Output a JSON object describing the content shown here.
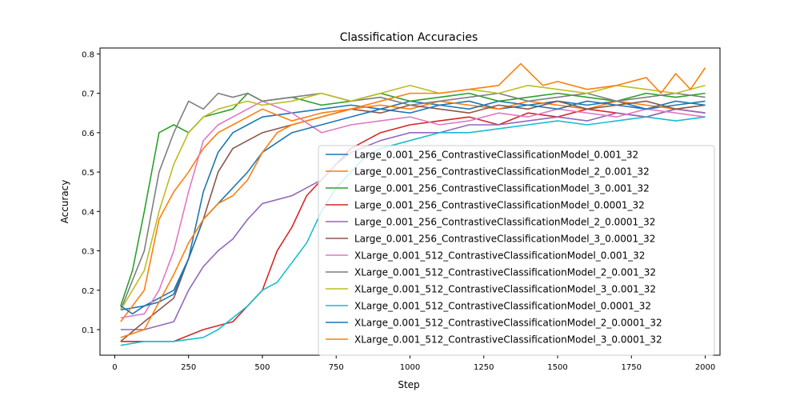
{
  "chart_data": {
    "type": "line",
    "title": "Classification Accuracies",
    "xlabel": "Step",
    "ylabel": "Accuracy",
    "xlim": [
      -50,
      2050
    ],
    "ylim": [
      0.035,
      0.815
    ],
    "xticks": [
      0,
      250,
      500,
      750,
      1000,
      1250,
      1500,
      1750,
      2000
    ],
    "yticks": [
      0.1,
      0.2,
      0.3,
      0.4,
      0.5,
      0.6,
      0.7,
      0.8
    ],
    "xtick_labels": [
      "0",
      "250",
      "500",
      "750",
      "1000",
      "1250",
      "1500",
      "1750",
      "2000"
    ],
    "ytick_labels": [
      "0.1",
      "0.2",
      "0.3",
      "0.4",
      "0.5",
      "0.6",
      "0.7",
      "0.8"
    ],
    "grid": false,
    "legend_position": "lower-right",
    "series": [
      {
        "name": "Large_0.001_256_ContrastiveClassificationModel_0.001_32",
        "color": "#1f77b4",
        "x": [
          20,
          100,
          200,
          250,
          300,
          350,
          400,
          450,
          500,
          600,
          700,
          800,
          900,
          1000,
          1100,
          1200,
          1300,
          1400,
          1500,
          1600,
          1700,
          1800,
          1900,
          2000
        ],
        "y": [
          0.15,
          0.16,
          0.2,
          0.28,
          0.45,
          0.55,
          0.6,
          0.62,
          0.64,
          0.65,
          0.66,
          0.67,
          0.66,
          0.68,
          0.67,
          0.68,
          0.66,
          0.67,
          0.68,
          0.67,
          0.68,
          0.66,
          0.67,
          0.68
        ]
      },
      {
        "name": "Large_0.001_256_ContrastiveClassificationModel_2_0.001_32",
        "color": "#ff7f0e",
        "x": [
          20,
          100,
          150,
          200,
          250,
          300,
          350,
          400,
          450,
          500,
          600,
          700,
          800,
          900,
          1000,
          1100,
          1200,
          1300,
          1400,
          1500,
          1600,
          1700,
          1800,
          1900,
          2000
        ],
        "y": [
          0.12,
          0.2,
          0.38,
          0.45,
          0.5,
          0.56,
          0.6,
          0.62,
          0.64,
          0.66,
          0.63,
          0.65,
          0.66,
          0.67,
          0.66,
          0.68,
          0.67,
          0.66,
          0.68,
          0.67,
          0.66,
          0.68,
          0.67,
          0.66,
          0.67
        ]
      },
      {
        "name": "Large_0.001_256_ContrastiveClassificationModel_3_0.001_32",
        "color": "#2ca02c",
        "x": [
          20,
          60,
          100,
          150,
          200,
          250,
          300,
          350,
          400,
          450,
          500,
          600,
          700,
          800,
          900,
          1000,
          1100,
          1200,
          1300,
          1400,
          1500,
          1600,
          1700,
          1800,
          1900,
          2000
        ],
        "y": [
          0.16,
          0.25,
          0.4,
          0.6,
          0.62,
          0.6,
          0.64,
          0.65,
          0.66,
          0.7,
          0.68,
          0.69,
          0.67,
          0.68,
          0.7,
          0.68,
          0.69,
          0.7,
          0.68,
          0.69,
          0.7,
          0.69,
          0.68,
          0.7,
          0.69,
          0.7
        ]
      },
      {
        "name": "Large_0.001_256_ContrastiveClassificationModel_0.0001_32",
        "color": "#d62728",
        "x": [
          20,
          100,
          200,
          300,
          400,
          450,
          500,
          550,
          600,
          650,
          700,
          750,
          800,
          900,
          1000,
          1100,
          1200,
          1300,
          1400,
          1500,
          1600,
          1700,
          1800,
          1900,
          2000
        ],
        "y": [
          0.07,
          0.07,
          0.07,
          0.1,
          0.12,
          0.16,
          0.2,
          0.3,
          0.36,
          0.44,
          0.48,
          0.52,
          0.56,
          0.6,
          0.62,
          0.63,
          0.64,
          0.62,
          0.65,
          0.64,
          0.66,
          0.65,
          0.64,
          0.66,
          0.65
        ]
      },
      {
        "name": "Large_0.001_256_ContrastiveClassificationModel_2_0.0001_32",
        "color": "#9467bd",
        "x": [
          20,
          100,
          200,
          250,
          300,
          350,
          400,
          450,
          500,
          600,
          700,
          750,
          800,
          900,
          1000,
          1100,
          1200,
          1300,
          1400,
          1500,
          1600,
          1700,
          1800,
          1900,
          2000
        ],
        "y": [
          0.1,
          0.1,
          0.12,
          0.2,
          0.26,
          0.3,
          0.33,
          0.38,
          0.42,
          0.44,
          0.48,
          0.52,
          0.55,
          0.58,
          0.6,
          0.6,
          0.62,
          0.62,
          0.63,
          0.64,
          0.63,
          0.65,
          0.64,
          0.66,
          0.65
        ]
      },
      {
        "name": "Large_0.001_256_ContrastiveClassificationModel_3_0.0001_32",
        "color": "#8c564b",
        "x": [
          20,
          100,
          200,
          250,
          300,
          350,
          400,
          450,
          500,
          600,
          700,
          800,
          900,
          1000,
          1100,
          1200,
          1300,
          1400,
          1500,
          1600,
          1700,
          1800,
          1900,
          2000
        ],
        "y": [
          0.07,
          0.12,
          0.18,
          0.28,
          0.38,
          0.5,
          0.56,
          0.58,
          0.6,
          0.62,
          0.64,
          0.66,
          0.65,
          0.67,
          0.66,
          0.65,
          0.67,
          0.66,
          0.68,
          0.66,
          0.67,
          0.68,
          0.66,
          0.67
        ]
      },
      {
        "name": "XLarge_0.001_512_ContrastiveClassificationModel_0.001_32",
        "color": "#e377c2",
        "x": [
          20,
          100,
          150,
          200,
          250,
          300,
          350,
          400,
          450,
          500,
          600,
          700,
          800,
          900,
          1000,
          1100,
          1200,
          1300,
          1400,
          1500,
          1600,
          1700,
          1800,
          1900,
          2000
        ],
        "y": [
          0.13,
          0.14,
          0.2,
          0.3,
          0.45,
          0.58,
          0.62,
          0.64,
          0.66,
          0.68,
          0.65,
          0.6,
          0.62,
          0.63,
          0.64,
          0.62,
          0.63,
          0.65,
          0.64,
          0.66,
          0.65,
          0.64,
          0.66,
          0.65,
          0.64
        ]
      },
      {
        "name": "XLarge_0.001_512_ContrastiveClassificationModel_2_0.001_32",
        "color": "#7f7f7f",
        "x": [
          20,
          100,
          150,
          200,
          250,
          300,
          350,
          400,
          450,
          500,
          600,
          700,
          800,
          900,
          1000,
          1100,
          1200,
          1300,
          1400,
          1500,
          1600,
          1700,
          1800,
          1900,
          2000
        ],
        "y": [
          0.15,
          0.3,
          0.5,
          0.6,
          0.68,
          0.66,
          0.7,
          0.69,
          0.7,
          0.68,
          0.69,
          0.7,
          0.68,
          0.69,
          0.67,
          0.68,
          0.69,
          0.7,
          0.68,
          0.69,
          0.7,
          0.68,
          0.69,
          0.7,
          0.69
        ]
      },
      {
        "name": "XLarge_0.001_512_ContrastiveClassificationModel_3_0.001_32",
        "color": "#bcbd22",
        "x": [
          20,
          100,
          150,
          200,
          250,
          300,
          350,
          400,
          450,
          500,
          600,
          700,
          800,
          900,
          1000,
          1100,
          1200,
          1300,
          1400,
          1500,
          1600,
          1700,
          1800,
          1900,
          2000
        ],
        "y": [
          0.15,
          0.25,
          0.4,
          0.52,
          0.6,
          0.64,
          0.66,
          0.67,
          0.68,
          0.67,
          0.68,
          0.7,
          0.68,
          0.7,
          0.72,
          0.7,
          0.71,
          0.7,
          0.72,
          0.71,
          0.7,
          0.72,
          0.71,
          0.7,
          0.72
        ]
      },
      {
        "name": "XLarge_0.001_512_ContrastiveClassificationModel_0.0001_32",
        "color": "#17becf",
        "x": [
          20,
          100,
          200,
          300,
          350,
          400,
          450,
          500,
          550,
          600,
          650,
          700,
          750,
          800,
          850,
          900,
          1000,
          1100,
          1200,
          1300,
          1400,
          1500,
          1600,
          1700,
          1800,
          1900,
          2000
        ],
        "y": [
          0.06,
          0.07,
          0.07,
          0.08,
          0.1,
          0.13,
          0.16,
          0.2,
          0.22,
          0.27,
          0.32,
          0.4,
          0.46,
          0.5,
          0.54,
          0.56,
          0.58,
          0.6,
          0.6,
          0.61,
          0.62,
          0.63,
          0.62,
          0.63,
          0.64,
          0.63,
          0.64
        ]
      },
      {
        "name": "XLarge_0.001_512_ContrastiveClassificationModel_2_0.0001_32",
        "color": "#1f77b4",
        "x": [
          20,
          60,
          100,
          150,
          200,
          250,
          300,
          350,
          400,
          450,
          500,
          600,
          700,
          800,
          900,
          1000,
          1100,
          1200,
          1300,
          1400,
          1500,
          1600,
          1700,
          1800,
          1900,
          2000
        ],
        "y": [
          0.16,
          0.14,
          0.16,
          0.17,
          0.19,
          0.28,
          0.38,
          0.42,
          0.46,
          0.5,
          0.55,
          0.6,
          0.62,
          0.64,
          0.66,
          0.65,
          0.67,
          0.66,
          0.68,
          0.67,
          0.66,
          0.68,
          0.67,
          0.66,
          0.68,
          0.67
        ]
      },
      {
        "name": "XLarge_0.001_512_ContrastiveClassificationModel_3_0.0001_32",
        "color": "#ff7f0e",
        "x": [
          20,
          100,
          200,
          250,
          300,
          350,
          400,
          450,
          500,
          550,
          600,
          700,
          800,
          900,
          1000,
          1100,
          1200,
          1300,
          1375,
          1450,
          1500,
          1600,
          1700,
          1800,
          1850,
          1900,
          1950,
          2000
        ],
        "y": [
          0.08,
          0.1,
          0.24,
          0.32,
          0.38,
          0.42,
          0.44,
          0.48,
          0.55,
          0.6,
          0.62,
          0.64,
          0.66,
          0.68,
          0.7,
          0.7,
          0.71,
          0.72,
          0.775,
          0.72,
          0.73,
          0.71,
          0.72,
          0.74,
          0.7,
          0.75,
          0.71,
          0.765
        ]
      }
    ]
  }
}
